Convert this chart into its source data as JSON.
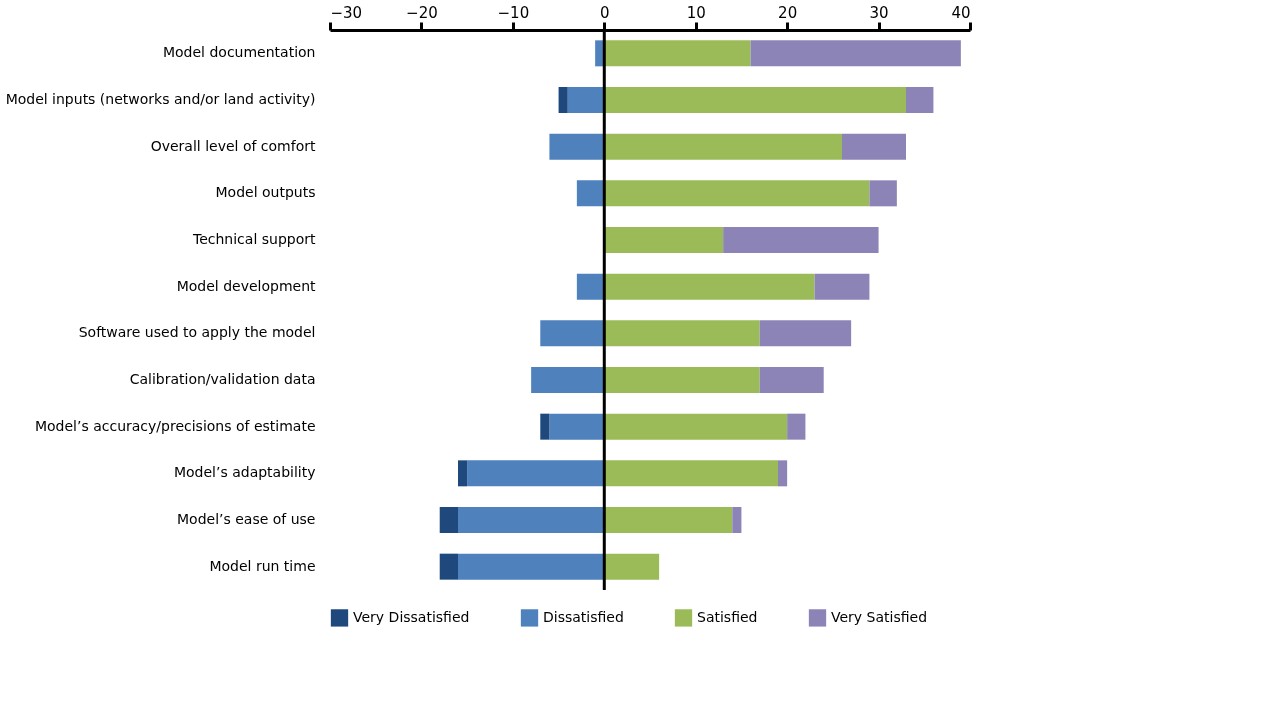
{
  "chart_data": {
    "type": "bar",
    "orientation": "horizontal",
    "stacked": true,
    "categories": [
      "Model documentation",
      "Model inputs (networks and/or land activity)",
      "Overall level of comfort",
      "Model outputs",
      "Technical support",
      "Model development",
      "Software used to apply the model",
      "Calibration/validation data",
      "Model’s accuracy/precisions of estimate",
      "Model’s adaptability",
      "Model’s ease of use",
      "Model run time"
    ],
    "series": [
      {
        "name": "Dissatisfied",
        "color": "#4f81bd",
        "values": [
          -1,
          -4,
          -6,
          -3,
          0,
          -3,
          -7,
          -8,
          -6,
          -15,
          -16,
          -16
        ]
      },
      {
        "name": "Very Dissatisfied",
        "color": "#1f497d",
        "values": [
          0,
          -1,
          0,
          0,
          0,
          0,
          0,
          0,
          -1,
          -1,
          -2,
          -2
        ]
      },
      {
        "name": "Satisfied",
        "color": "#9bbb59",
        "values": [
          16,
          33,
          26,
          29,
          13,
          23,
          17,
          17,
          20,
          19,
          14,
          6
        ]
      },
      {
        "name": "Very Satisfied",
        "color": "#8c84b7",
        "values": [
          23,
          3,
          7,
          3,
          17,
          6,
          10,
          7,
          2,
          1,
          1,
          0
        ]
      }
    ],
    "xlim": [
      -30,
      40
    ],
    "xticks": [
      -30,
      -20,
      -10,
      0,
      10,
      20,
      30,
      40
    ],
    "grid": false,
    "legend": "bottom",
    "ref_lines": [
      {
        "axis": "x",
        "value": 0,
        "color": "#000000"
      }
    ]
  }
}
